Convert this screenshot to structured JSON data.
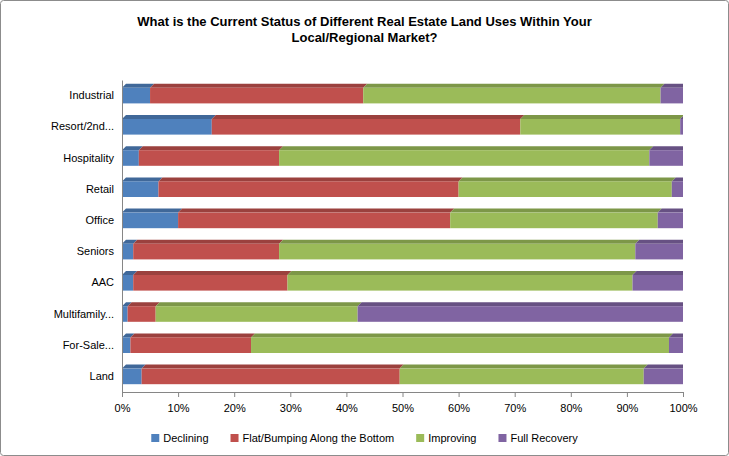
{
  "chart_data": {
    "type": "bar",
    "orientation": "horizontal",
    "stacked": true,
    "grid": false,
    "legend": "bottom",
    "title": "What is the Current Status of Different Real Estate Land Uses Within Your Local/Regional Market?",
    "categories": [
      "Industrial",
      "Resort/2nd...",
      "Hospitality",
      "Retail",
      "Office",
      "Seniors",
      "AAC",
      "Multifamily...",
      "For-Sale...",
      "Land"
    ],
    "series": [
      {
        "name": "Declining",
        "color": "#4f81bd",
        "values": [
          5,
          16,
          3,
          6.5,
          10,
          2,
          2,
          1,
          1.5,
          3.5
        ]
      },
      {
        "name": "Flat/Bumping Along the Bottom",
        "color": "#c0504d",
        "values": [
          38,
          55,
          25,
          53.5,
          48.5,
          26,
          27.5,
          5,
          21.5,
          46
        ]
      },
      {
        "name": "Improving",
        "color": "#9bbb59",
        "values": [
          53,
          28.5,
          66,
          38,
          37,
          63.5,
          61.5,
          36,
          74.5,
          43.5
        ]
      },
      {
        "name": "Full Recovery",
        "color": "#8064a2",
        "values": [
          4,
          0.5,
          6,
          2,
          4.5,
          8.5,
          9,
          58,
          2.5,
          7
        ]
      }
    ],
    "xlim": [
      0,
      100
    ],
    "xticks": [
      {
        "value": 0,
        "label": "0%"
      },
      {
        "value": 10,
        "label": "10%"
      },
      {
        "value": 20,
        "label": "20%"
      },
      {
        "value": 30,
        "label": "30%"
      },
      {
        "value": 40,
        "label": "40%"
      },
      {
        "value": 50,
        "label": "50%"
      },
      {
        "value": 60,
        "label": "60%"
      },
      {
        "value": 70,
        "label": "70%"
      },
      {
        "value": 80,
        "label": "80%"
      },
      {
        "value": 90,
        "label": "90%"
      },
      {
        "value": 100,
        "label": "100%"
      }
    ]
  }
}
